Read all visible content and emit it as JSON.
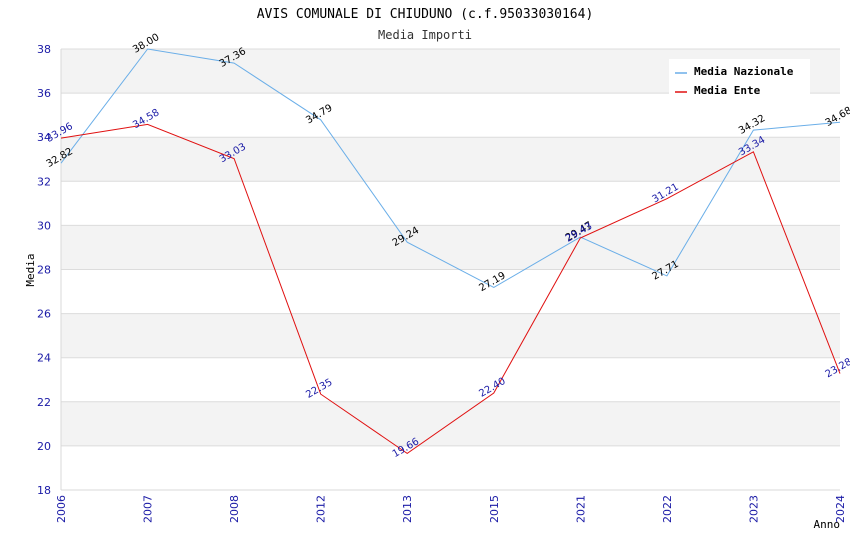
{
  "chart_data": {
    "type": "line",
    "title": "AVIS COMUNALE DI CHIUDUNO (c.f.95033030164)",
    "subtitle": "Media Importi",
    "xlabel": "Anno",
    "ylabel": "Media",
    "categories": [
      "2006",
      "2007",
      "2008",
      "2012",
      "2013",
      "2015",
      "2021",
      "2022",
      "2023",
      "2024"
    ],
    "ylim": [
      18,
      38
    ],
    "yticks": [
      18,
      20,
      22,
      24,
      26,
      28,
      30,
      32,
      34,
      36,
      38
    ],
    "grid": true,
    "legend_position": "top-right",
    "series": [
      {
        "name": "Media Nazionale",
        "color": "#6aaee8",
        "values": [
          32.82,
          38.0,
          37.36,
          34.79,
          29.24,
          27.19,
          29.47,
          27.71,
          34.32,
          34.68
        ],
        "labels": [
          "32.82",
          "38.00",
          "37.36",
          "34.79",
          "29.24",
          "27.19",
          "29.47",
          "27.71",
          "34.32",
          "34.68"
        ]
      },
      {
        "name": "Media Ente",
        "color": "#e01010",
        "values": [
          33.96,
          34.58,
          33.03,
          22.35,
          19.66,
          22.4,
          29.43,
          31.21,
          33.34,
          23.28
        ],
        "labels": [
          "33.96",
          "34.58",
          "33.03",
          "22.35",
          "19.66",
          "22.40",
          "29.43",
          "31.21",
          "33.34",
          "23.28"
        ]
      }
    ]
  }
}
